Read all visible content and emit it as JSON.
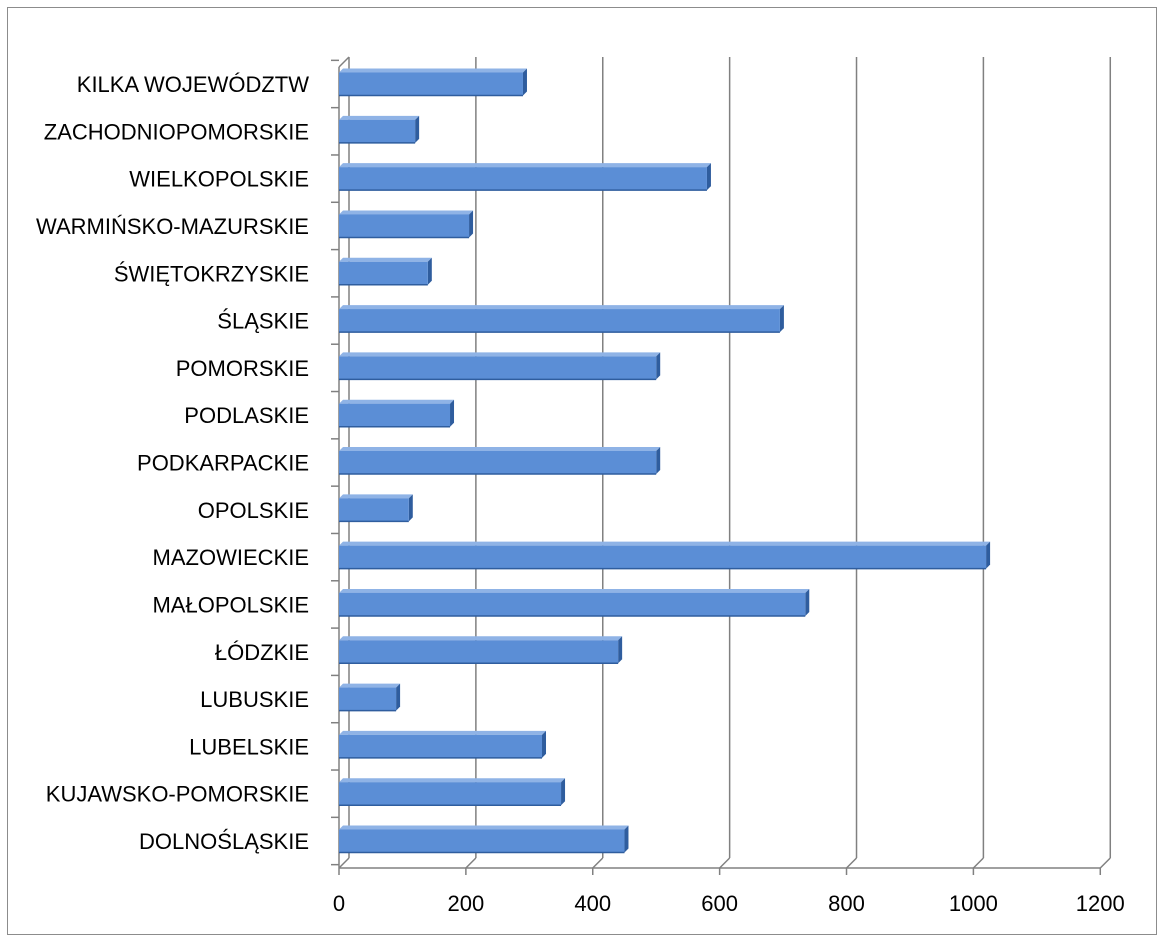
{
  "chart_data": {
    "type": "bar",
    "orientation": "horizontal",
    "title": "",
    "xlabel": "",
    "ylabel": "",
    "categories": [
      "KILKA WOJEWÓDZTW",
      "ZACHODNIOPOMORSKIE",
      "WIELKOPOLSKIE",
      "WARMIŃSKO-MAZURSKIE",
      "ŚWIĘTOKRZYSKIE",
      "ŚLĄSKIE",
      "POMORSKIE",
      "PODLASKIE",
      "PODKARPACKIE",
      "OPOLSKIE",
      "MAZOWIECKIE",
      "MAŁOPOLSKIE",
      "ŁÓDZKIE",
      "LUBUSKIE",
      "LUBELSKIE",
      "KUJAWSKO-POMORSKIE",
      "DOLNOŚLĄSKIE"
    ],
    "values": [
      290,
      120,
      580,
      205,
      140,
      695,
      500,
      175,
      500,
      110,
      1020,
      735,
      440,
      90,
      320,
      350,
      450
    ],
    "xlim": [
      0,
      1200
    ],
    "x_ticks": [
      0,
      200,
      400,
      600,
      800,
      1000,
      1200
    ],
    "x_tick_labels": [
      "0",
      "200",
      "400",
      "600",
      "800",
      "1000",
      "1200"
    ],
    "grid": "vertical",
    "legend": "none",
    "style": "3d",
    "colors": {
      "bar": "#5b8ed6",
      "bar_top": "#8fb3e6",
      "bar_side": "#2f5d9e",
      "gridline": "#808080",
      "frame": "#8c8c8c"
    }
  }
}
